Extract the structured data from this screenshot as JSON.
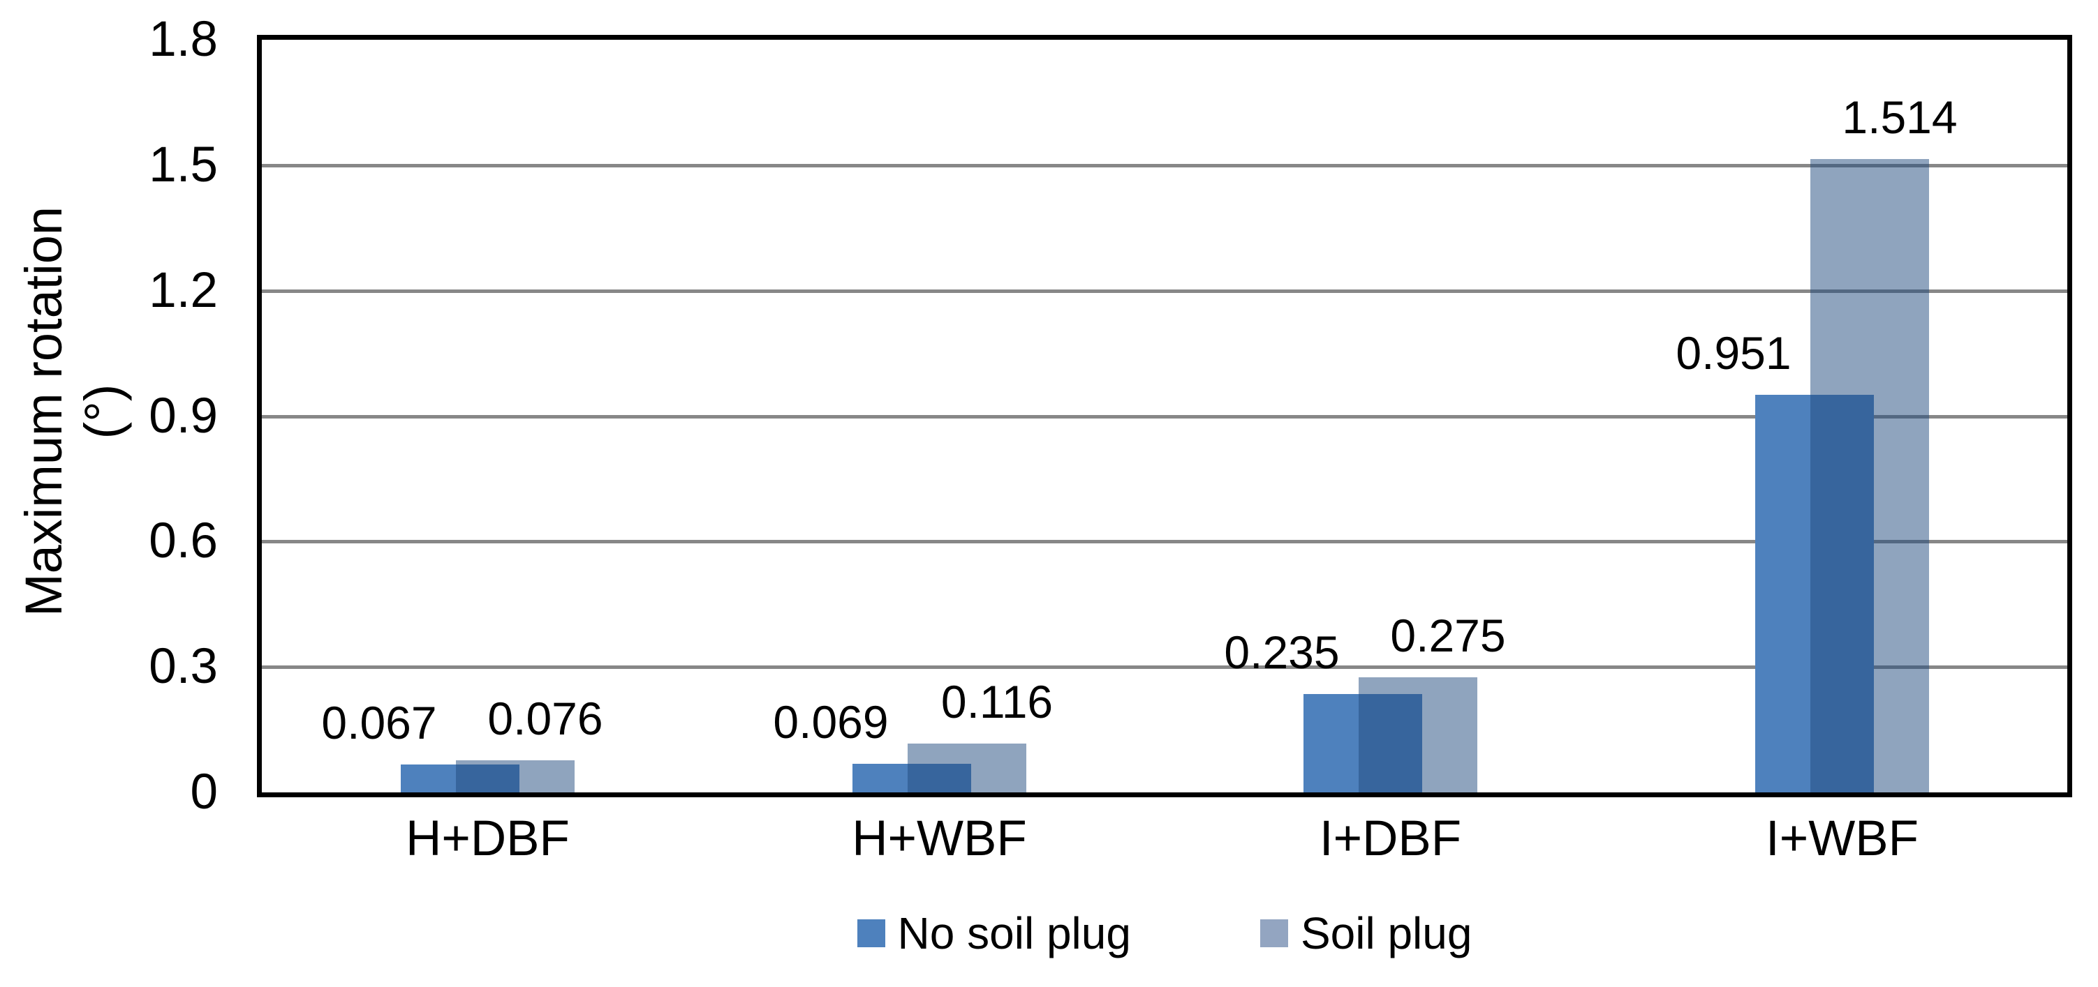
{
  "chart_data": {
    "type": "bar",
    "title": "",
    "categories": [
      "H+DBF",
      "H+WBF",
      "I+DBF",
      "I+WBF"
    ],
    "series": [
      {
        "name": "No soil plug",
        "values": [
          0.067,
          0.069,
          0.235,
          0.951
        ],
        "labels": [
          "0.067",
          "0.069",
          "0.235",
          "0.951"
        ],
        "color": "#4E81BD",
        "legend_color": "#4E81BD"
      },
      {
        "name": "Soil plug",
        "values": [
          0.076,
          0.116,
          0.275,
          1.514
        ],
        "labels": [
          "0.076",
          "0.116",
          "0.275",
          "1.514"
        ],
        "color": "rgba(31, 73, 125, 0.5)",
        "legend_color": "#93A5C1"
      }
    ],
    "ylabel": "Maximum rotation",
    "ylabel_unit": "(°)",
    "ylim": [
      0,
      1.8
    ],
    "yticks": [
      0,
      0.3,
      0.6,
      0.9,
      1.2,
      1.5,
      1.8
    ],
    "ytick_labels": [
      "0",
      "0.3",
      "0.6",
      "0.9",
      "1.2",
      "1.5",
      "1.8"
    ],
    "xlabel": "",
    "grid": "horizontal",
    "gridline_color": "#878787",
    "axis_color": "#000000",
    "legend_position": "bottom",
    "bar_overlap_percent": 52,
    "data_labels_position": "outside-end"
  }
}
